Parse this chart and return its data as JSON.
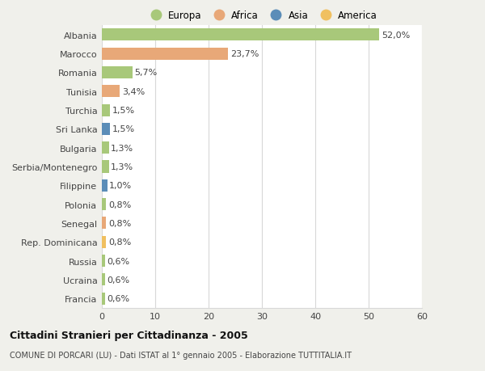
{
  "countries": [
    "Albania",
    "Marocco",
    "Romania",
    "Tunisia",
    "Turchia",
    "Sri Lanka",
    "Bulgaria",
    "Serbia/Montenegro",
    "Filippine",
    "Polonia",
    "Senegal",
    "Rep. Dominicana",
    "Russia",
    "Ucraina",
    "Francia"
  ],
  "values": [
    52.0,
    23.7,
    5.7,
    3.4,
    1.5,
    1.5,
    1.3,
    1.3,
    1.0,
    0.8,
    0.8,
    0.8,
    0.6,
    0.6,
    0.6
  ],
  "labels": [
    "52,0%",
    "23,7%",
    "5,7%",
    "3,4%",
    "1,5%",
    "1,5%",
    "1,3%",
    "1,3%",
    "1,0%",
    "0,8%",
    "0,8%",
    "0,8%",
    "0,6%",
    "0,6%",
    "0,6%"
  ],
  "continents": [
    "Europa",
    "Africa",
    "Europa",
    "Africa",
    "Europa",
    "Asia",
    "Europa",
    "Europa",
    "Asia",
    "Europa",
    "Africa",
    "America",
    "Europa",
    "Europa",
    "Europa"
  ],
  "continent_colors": {
    "Europa": "#a8c87a",
    "Africa": "#e8a878",
    "Asia": "#5b8db8",
    "America": "#f0c060"
  },
  "legend_items": [
    "Europa",
    "Africa",
    "Asia",
    "America"
  ],
  "legend_colors": [
    "#a8c87a",
    "#e8a878",
    "#5b8db8",
    "#f0c060"
  ],
  "xlim": [
    0,
    60
  ],
  "xticks": [
    0,
    10,
    20,
    30,
    40,
    50,
    60
  ],
  "title": "Cittadini Stranieri per Cittadinanza - 2005",
  "subtitle": "COMUNE DI PORCARI (LU) - Dati ISTAT al 1° gennaio 2005 - Elaborazione TUTTITALIA.IT",
  "bg_color": "#f0f0eb",
  "plot_bg_color": "#ffffff",
  "grid_color": "#d8d8d8",
  "bar_height": 0.65,
  "label_fontsize": 8,
  "ytick_fontsize": 8,
  "xtick_fontsize": 8
}
